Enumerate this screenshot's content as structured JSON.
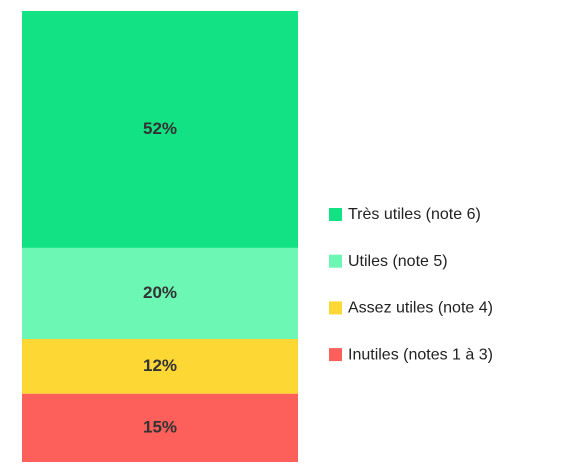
{
  "chart_data": {
    "type": "bar",
    "stacked": true,
    "legend": "right",
    "series": [
      {
        "name": "Très utiles (note 6)",
        "color": "#12e283",
        "values": [
          52
        ],
        "value_labels": [
          "52%"
        ]
      },
      {
        "name": "Utiles (note 5)",
        "color": "#6cf7b5",
        "values": [
          20
        ],
        "value_labels": [
          "20%"
        ]
      },
      {
        "name": "Assez utiles (note 4)",
        "color": "#fdd835",
        "values": [
          12
        ],
        "value_labels": [
          "12%"
        ]
      },
      {
        "name": "Inutiles (notes 1 à 3)",
        "color": "#fd5f5a",
        "values": [
          15
        ],
        "value_labels": [
          "15%"
        ]
      }
    ]
  }
}
